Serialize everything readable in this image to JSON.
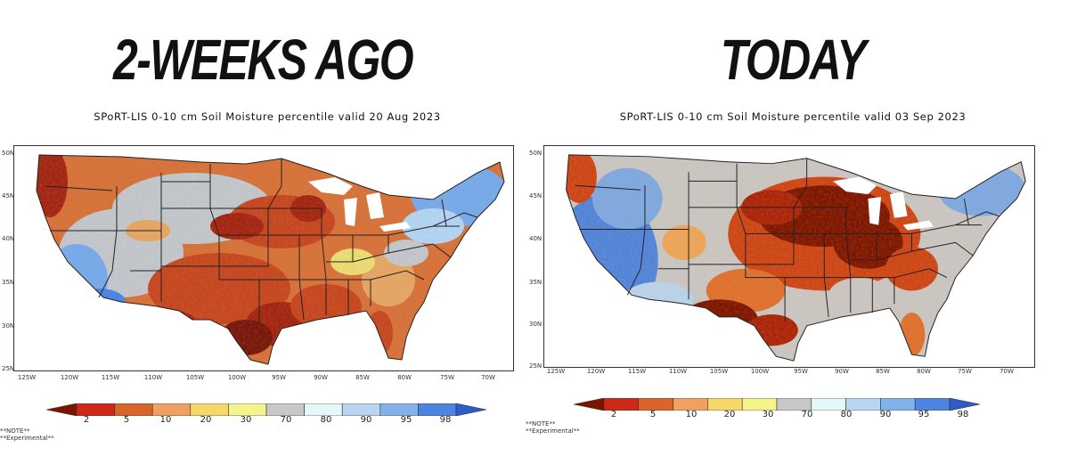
{
  "left_panel": {
    "headline": "2-WEEKS AGO",
    "subtitle": "SPoRT-LIS 0-10 cm Soil Moisture percentile valid 20 Aug 2023",
    "lat_labels": [
      "50N",
      "45N",
      "40N",
      "35N",
      "30N",
      "25N"
    ],
    "lon_labels": [
      "125W",
      "120W",
      "115W",
      "110W",
      "105W",
      "100W",
      "95W",
      "90W",
      "85W",
      "80W",
      "75W",
      "70W"
    ],
    "notes": [
      "**NOTE**",
      "**Experimental**"
    ]
  },
  "right_panel": {
    "headline": "TODAY",
    "subtitle": "SPoRT-LIS 0-10 cm Soil Moisture percentile valid 03 Sep 2023",
    "lat_labels": [
      "50N",
      "45N",
      "40N",
      "35N",
      "30N",
      "25N"
    ],
    "lon_labels": [
      "125W",
      "120W",
      "115W",
      "110W",
      "105W",
      "100W",
      "95W",
      "90W",
      "85W",
      "80W",
      "75W",
      "70W"
    ],
    "notes": [
      "**NOTE**",
      "**Experimental**"
    ]
  },
  "colorbar": {
    "labels": [
      "2",
      "5",
      "10",
      "20",
      "30",
      "70",
      "80",
      "90",
      "95",
      "98"
    ],
    "colors": [
      "#7a1400",
      "#cc2a16",
      "#d9652a",
      "#f0a060",
      "#f6d868",
      "#f4f48c",
      "#c8c8c8",
      "#e4f8fa",
      "#b8d6f2",
      "#82b2ec",
      "#4c84e0",
      "#2c5cc8"
    ]
  },
  "map_colors": {
    "dry_extreme": "#7a1400",
    "dry_severe": "#a82208",
    "dry": "#cc4416",
    "dry_mod": "#dd7030",
    "dry_light": "#eca65c",
    "yellow": "#f2de6c",
    "normal": "#c8c8c8",
    "wet_light": "#b8d6f2",
    "wet": "#7aaae8",
    "wet_mod": "#4c84e0",
    "wet_extreme": "#2c5cc8",
    "water": "#ffffff"
  }
}
